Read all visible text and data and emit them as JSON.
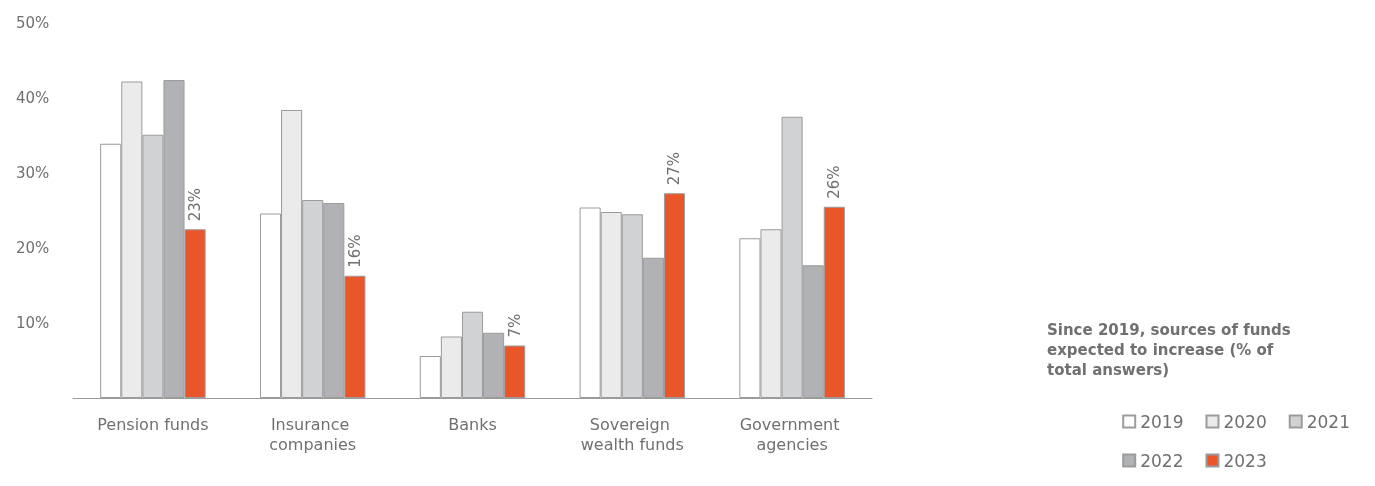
{
  "chart_data": {
    "type": "bar",
    "legend_title": "Since 2019, sources of funds expected to increase (% of total answers)",
    "categories": [
      "Pension funds",
      "Insurance companies",
      "Banks",
      "Sovereign wealth funds",
      "Government agencies"
    ],
    "series": [
      {
        "name": "2019",
        "color": "#ffffff",
        "values": [
          33.9,
          24.6,
          5.6,
          25.4,
          21.3
        ]
      },
      {
        "name": "2020",
        "color": "#ebebeb",
        "values": [
          42.2,
          38.4,
          8.2,
          24.8,
          22.5
        ]
      },
      {
        "name": "2021",
        "color": "#d1d2d4",
        "values": [
          35.1,
          26.4,
          11.5,
          24.5,
          37.5
        ]
      },
      {
        "name": "2022",
        "color": "#b1b2b5",
        "values": [
          42.4,
          26.0,
          8.7,
          18.7,
          17.7
        ]
      },
      {
        "name": "2023",
        "color": "#e8562a",
        "values": [
          22.5,
          16.3,
          7.0,
          27.3,
          25.5
        ],
        "value_labels": [
          "23%",
          "16%",
          "7%",
          "27%",
          "26%"
        ]
      }
    ],
    "ylim": [
      0,
      50
    ],
    "yticks": [
      {
        "value": 10,
        "label": "10%"
      },
      {
        "value": 20,
        "label": "20%"
      },
      {
        "value": 30,
        "label": "30%"
      },
      {
        "value": 40,
        "label": "40%"
      },
      {
        "value": 50,
        "label": "50%"
      }
    ],
    "grid": false,
    "legend": "bottom right"
  }
}
